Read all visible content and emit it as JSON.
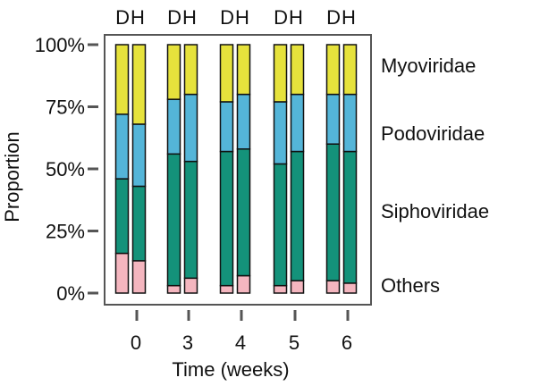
{
  "chart_data": {
    "type": "bar",
    "stacked": true,
    "normalized": true,
    "ylabel": "Proportion",
    "xlabel": "Time (weeks)",
    "ylim": [
      0,
      100
    ],
    "yticks": [
      "0%",
      "25%",
      "50%",
      "75%",
      "100%"
    ],
    "groups": [
      "0",
      "3",
      "4",
      "5",
      "6"
    ],
    "bars_per_group": [
      "D",
      "H"
    ],
    "group_header": "DH",
    "categories": [
      "0-D",
      "0-H",
      "3-D",
      "3-H",
      "4-D",
      "4-H",
      "5-D",
      "5-H",
      "6-D",
      "6-H"
    ],
    "series": [
      {
        "name": "Others",
        "color": "#f4b6bf",
        "values": [
          16,
          13,
          3,
          6,
          3,
          7,
          3,
          5,
          5,
          4
        ]
      },
      {
        "name": "Siphoviridae",
        "color": "#14927a",
        "values": [
          30,
          30,
          53,
          47,
          54,
          51,
          49,
          52,
          55,
          53
        ]
      },
      {
        "name": "Podoviridae",
        "color": "#54b5d8",
        "values": [
          26,
          25,
          22,
          27,
          20,
          22,
          25,
          23,
          20,
          23
        ]
      },
      {
        "name": "Myoviridae",
        "color": "#e6e23c",
        "values": [
          28,
          32,
          22,
          20,
          23,
          20,
          23,
          20,
          20,
          20
        ]
      }
    ],
    "legend_order_top_to_bottom": [
      "Myoviridae",
      "Podoviridae",
      "Siphoviridae",
      "Others"
    ],
    "grid": false,
    "frame_color": "#555555"
  }
}
